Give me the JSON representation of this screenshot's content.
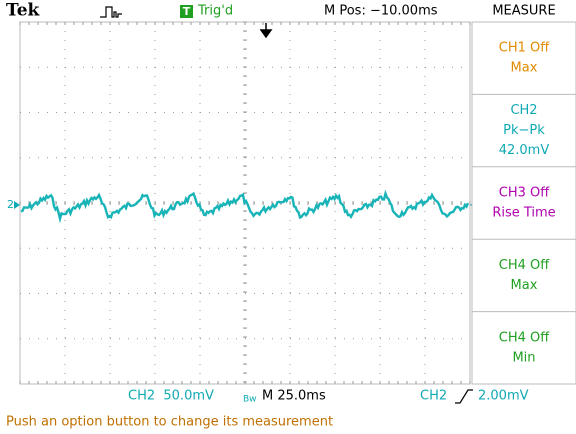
{
  "header": {
    "brand": "Tek",
    "trigger_badge": "T",
    "trigger_state": "Trig'd",
    "position": "M Pos: −10.00ms",
    "menu_title": "MEASURE"
  },
  "marker": "2",
  "menu": [
    {
      "lines": [
        "CH1 Off",
        "Max"
      ],
      "color": "#e08a00"
    },
    {
      "lines": [
        "CH2",
        "Pk−Pk",
        "42.0mV"
      ],
      "color": "#10aab4"
    },
    {
      "lines": [
        "CH3 Off",
        "Rise Time"
      ],
      "color": "#b000b0"
    },
    {
      "lines": [
        "CH4 Off",
        "Max"
      ],
      "color": "#20a020"
    },
    {
      "lines": [
        "CH4 Off",
        "Min"
      ],
      "color": "#20a020"
    }
  ],
  "footer": {
    "ch_scale": "CH2  50.0mV",
    "bandwidth": "Bw",
    "timebase": "M 25.0ms",
    "trigger_source": "CH2",
    "trigger_level": "2.00mV"
  },
  "status": "Push an option button to change its measurement"
}
